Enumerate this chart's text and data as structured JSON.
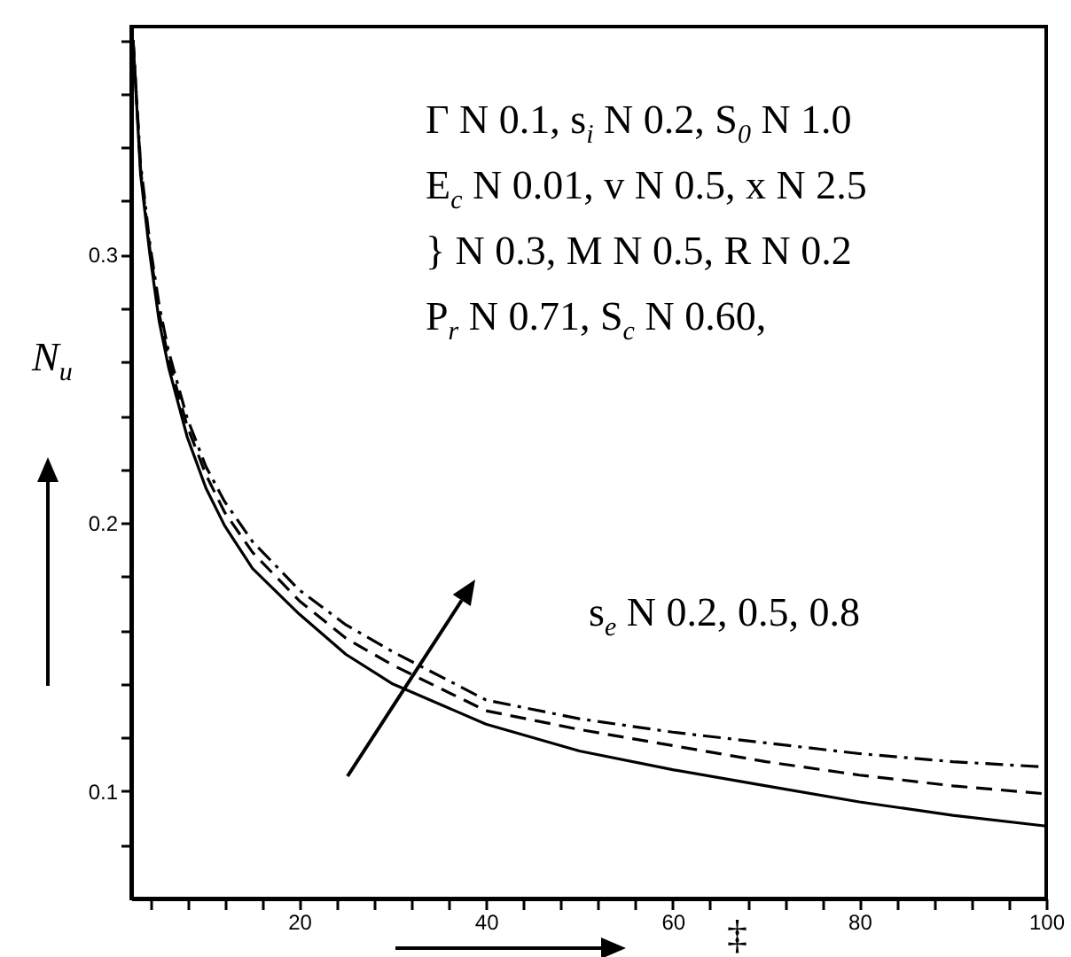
{
  "chart_data": {
    "type": "line",
    "xlabel": "‡",
    "ylabel": "N$_{u}$",
    "x": [
      2.2,
      3,
      4,
      5,
      6,
      8,
      10,
      12,
      15,
      20,
      25,
      30,
      40,
      50,
      60,
      70,
      80,
      90,
      100
    ],
    "series": [
      {
        "color": "#000000",
        "line_style": "solid",
        "values": [
          0.38,
          0.33,
          0.3,
          0.275,
          0.258,
          0.232,
          0.213,
          0.199,
          0.183,
          0.166,
          0.151,
          0.14,
          0.125,
          0.115,
          0.108,
          0.102,
          0.096,
          0.091,
          0.087
        ]
      },
      {
        "color": "#000000",
        "line_style": "dashed",
        "values": [
          0.38,
          0.332,
          0.302,
          0.278,
          0.261,
          0.236,
          0.218,
          0.204,
          0.189,
          0.171,
          0.157,
          0.147,
          0.13,
          0.123,
          0.117,
          0.111,
          0.106,
          0.102,
          0.099
        ]
      },
      {
        "color": "#000000",
        "line_style": "dashdot",
        "values": [
          0.38,
          0.334,
          0.304,
          0.281,
          0.264,
          0.239,
          0.221,
          0.208,
          0.193,
          0.175,
          0.162,
          0.152,
          0.134,
          0.127,
          0.122,
          0.118,
          0.114,
          0.111,
          0.109
        ]
      }
    ],
    "xlim": [
      2,
      100
    ],
    "xticks": [
      {
        "value": 4,
        "label": null
      },
      {
        "value": 8,
        "label": null
      },
      {
        "value": 12,
        "label": null
      },
      {
        "value": 16,
        "label": null
      },
      20,
      {
        "value": 24,
        "label": null
      },
      {
        "value": 28,
        "label": null
      },
      {
        "value": 32,
        "label": null
      },
      {
        "value": 36,
        "label": null
      },
      40,
      {
        "value": 44,
        "label": null
      },
      {
        "value": 48,
        "label": null
      },
      {
        "value": 52,
        "label": null
      },
      {
        "value": 56,
        "label": null
      },
      60,
      {
        "value": 64,
        "label": null
      },
      {
        "value": 68,
        "label": null
      },
      {
        "value": 72,
        "label": null
      },
      {
        "value": 76,
        "label": null
      },
      80,
      {
        "value": 84,
        "label": null
      },
      {
        "value": 88,
        "label": null
      },
      {
        "value": 92,
        "label": null
      },
      {
        "value": 96,
        "label": null
      },
      100
    ],
    "ylim": [
      0.06,
      0.385
    ],
    "yticks": [
      {
        "value": 0.08,
        "label": null
      },
      0.1,
      {
        "value": 0.12,
        "label": null
      },
      {
        "value": 0.14,
        "label": null
      },
      {
        "value": 0.16,
        "label": null
      },
      {
        "value": 0.18,
        "label": null
      },
      0.2,
      {
        "value": 0.22,
        "label": null
      },
      {
        "value": 0.24,
        "label": null
      },
      {
        "value": 0.26,
        "label": null
      },
      {
        "value": 0.28,
        "label": null
      },
      0.3,
      {
        "value": 0.32,
        "label": null
      },
      {
        "value": 0.34,
        "label": null
      },
      {
        "value": 0.36,
        "label": null
      },
      {
        "value": 0.38,
        "label": null
      }
    ],
    "annotations": [
      "Γ N 0.1, s$_{i}$ N 0.2, S$_{0}$ N 1.0",
      "E$_{c}$ N 0.01, v N 0.5, x N 2.5",
      "} N 0.3, M N 0.5, R N 0.2",
      "P$_{r}$ N 0.71, S$_{c}$ N 0.60,",
      "s$_{e}$ N 0.2, 0.5, 0.8"
    ],
    "grid": false
  }
}
